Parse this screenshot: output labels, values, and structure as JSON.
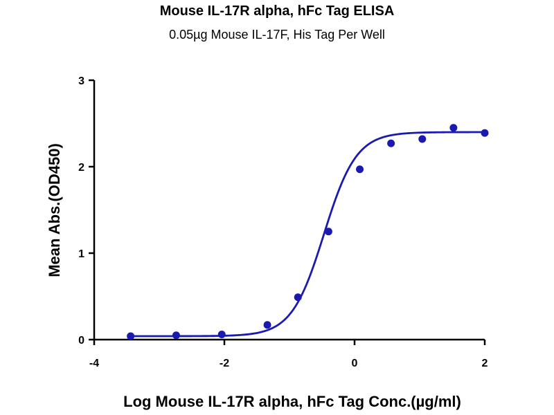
{
  "chart_data": {
    "type": "scatter",
    "title": "Mouse IL-17R alpha, hFc Tag ELISA",
    "subtitle": "0.05µg Mouse IL-17F, His Tag Per Well",
    "xlabel": "Log Mouse IL-17R alpha, hFc Tag Conc.(µg/ml)",
    "ylabel": "Mean Abs.(OD450)",
    "xlim": [
      -4,
      2
    ],
    "ylim": [
      0,
      3
    ],
    "x_ticks": [
      -4,
      -2,
      0,
      2
    ],
    "y_ticks": [
      0,
      1,
      2,
      3
    ],
    "x_tick_labels": [
      "-4",
      "-2",
      "0",
      "2"
    ],
    "y_tick_labels": [
      "0",
      "1",
      "2",
      "3"
    ],
    "grid": false,
    "series": [
      {
        "x": [
          -3.44,
          -2.74,
          -2.04,
          -1.34,
          -0.87,
          -0.4,
          0.08,
          0.56,
          1.04,
          1.52,
          2.0
        ],
        "y": [
          0.04,
          0.05,
          0.06,
          0.17,
          0.49,
          1.25,
          1.97,
          2.27,
          2.32,
          2.45,
          2.39
        ],
        "color": "#1a1ab0"
      }
    ],
    "fit_curve": {
      "model": "4PL",
      "bottom": 0.04,
      "top": 2.4,
      "logEC50": -0.47,
      "hill": 1.75,
      "x_range": [
        -3.44,
        2.0
      ],
      "color": "#1a1ab0"
    }
  }
}
